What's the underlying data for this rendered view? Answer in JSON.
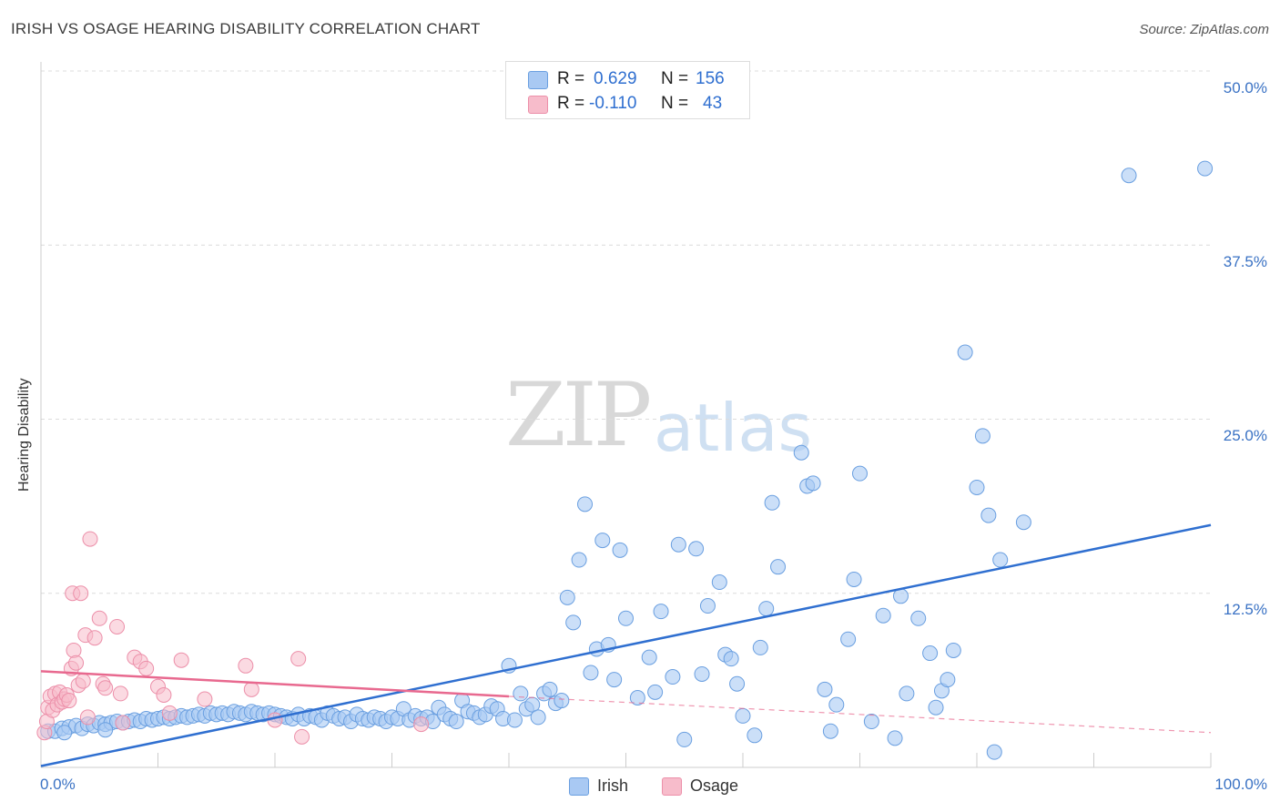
{
  "title": "IRISH VS OSAGE HEARING DISABILITY CORRELATION CHART",
  "source": "Source: ZipAtlas.com",
  "watermark": {
    "zip": "ZIP",
    "atlas": "atlas"
  },
  "legend": {
    "rows": [
      {
        "r_label": "R =",
        "r_value": "0.629",
        "n_label": "N =",
        "n_value": "156"
      },
      {
        "r_label": "R =",
        "r_value": "-0.110",
        "n_label": "N =",
        "n_value": "43"
      }
    ]
  },
  "bottom_legend": {
    "irish": "Irish",
    "osage": "Osage"
  },
  "colors": {
    "irish_fill": "#a9c9f3",
    "irish_stroke": "#6a9fe0",
    "irish_line": "#2f6fd0",
    "osage_fill": "#f7bccb",
    "osage_stroke": "#ec8fa9",
    "osage_line": "#e8698f"
  },
  "chart_data": {
    "type": "scatter",
    "title": "IRISH VS OSAGE HEARING DISABILITY CORRELATION CHART",
    "xlabel": "",
    "ylabel": "Hearing Disability",
    "xlim": [
      0,
      100
    ],
    "ylim": [
      0,
      50
    ],
    "x_tick_labels": [
      "0.0%",
      "100.0%"
    ],
    "y_ticks": [
      12.5,
      25.0,
      37.5,
      50.0
    ],
    "y_tick_labels": [
      "12.5%",
      "25.0%",
      "37.5%",
      "50.0%"
    ],
    "grid": true,
    "legend_position": "top-center",
    "series": [
      {
        "name": "Irish",
        "points": [
          [
            0.6,
            2.6
          ],
          [
            1.2,
            2.6
          ],
          [
            1.8,
            2.8
          ],
          [
            2.4,
            2.9
          ],
          [
            3,
            3.0
          ],
          [
            3.5,
            2.8
          ],
          [
            4,
            3.1
          ],
          [
            4.5,
            3.0
          ],
          [
            5,
            3.2
          ],
          [
            5.5,
            3.1
          ],
          [
            6,
            3.2
          ],
          [
            6.5,
            3.3
          ],
          [
            7,
            3.2
          ],
          [
            7.5,
            3.3
          ],
          [
            8,
            3.4
          ],
          [
            8.5,
            3.3
          ],
          [
            9,
            3.5
          ],
          [
            9.5,
            3.4
          ],
          [
            10,
            3.5
          ],
          [
            10.5,
            3.6
          ],
          [
            11,
            3.5
          ],
          [
            11.5,
            3.6
          ],
          [
            12,
            3.7
          ],
          [
            12.5,
            3.6
          ],
          [
            13,
            3.7
          ],
          [
            13.5,
            3.8
          ],
          [
            14,
            3.7
          ],
          [
            14.5,
            3.9
          ],
          [
            15,
            3.8
          ],
          [
            15.5,
            3.9
          ],
          [
            16,
            3.8
          ],
          [
            16.5,
            4.0
          ],
          [
            17,
            3.9
          ],
          [
            17.5,
            3.8
          ],
          [
            18,
            4.0
          ],
          [
            18.5,
            3.9
          ],
          [
            19,
            3.8
          ],
          [
            19.5,
            3.9
          ],
          [
            20,
            3.8
          ],
          [
            20.5,
            3.7
          ],
          [
            21,
            3.6
          ],
          [
            21.5,
            3.5
          ],
          [
            22,
            3.8
          ],
          [
            22.5,
            3.5
          ],
          [
            23,
            3.7
          ],
          [
            23.5,
            3.6
          ],
          [
            24,
            3.4
          ],
          [
            24.5,
            3.9
          ],
          [
            25,
            3.7
          ],
          [
            25.5,
            3.5
          ],
          [
            26,
            3.6
          ],
          [
            26.5,
            3.3
          ],
          [
            27,
            3.8
          ],
          [
            27.5,
            3.5
          ],
          [
            28,
            3.4
          ],
          [
            28.5,
            3.6
          ],
          [
            29,
            3.5
          ],
          [
            29.5,
            3.3
          ],
          [
            30,
            3.6
          ],
          [
            30.5,
            3.5
          ],
          [
            31,
            4.2
          ],
          [
            31.5,
            3.4
          ],
          [
            32,
            3.7
          ],
          [
            32.5,
            3.5
          ],
          [
            33,
            3.6
          ],
          [
            33.5,
            3.3
          ],
          [
            34,
            4.3
          ],
          [
            34.5,
            3.8
          ],
          [
            35,
            3.5
          ],
          [
            35.5,
            3.3
          ],
          [
            36,
            4.8
          ],
          [
            36.5,
            4.0
          ],
          [
            37,
            3.9
          ],
          [
            37.5,
            3.6
          ],
          [
            38,
            3.8
          ],
          [
            38.5,
            4.4
          ],
          [
            39,
            4.2
          ],
          [
            39.5,
            3.5
          ],
          [
            40,
            7.3
          ],
          [
            40.5,
            3.4
          ],
          [
            41,
            5.3
          ],
          [
            41.5,
            4.2
          ],
          [
            42,
            4.5
          ],
          [
            42.5,
            3.6
          ],
          [
            43,
            5.3
          ],
          [
            43.5,
            5.6
          ],
          [
            44,
            4.6
          ],
          [
            44.5,
            4.8
          ],
          [
            45,
            12.2
          ],
          [
            45.5,
            10.4
          ],
          [
            46,
            14.9
          ],
          [
            46.5,
            18.9
          ],
          [
            47,
            6.8
          ],
          [
            47.5,
            8.5
          ],
          [
            48,
            16.3
          ],
          [
            48.5,
            8.8
          ],
          [
            49,
            6.3
          ],
          [
            49.5,
            15.6
          ],
          [
            50,
            10.7
          ],
          [
            51,
            5.0
          ],
          [
            52,
            7.9
          ],
          [
            52.5,
            5.4
          ],
          [
            53,
            11.2
          ],
          [
            54,
            6.5
          ],
          [
            54.5,
            16.0
          ],
          [
            55,
            2.0
          ],
          [
            56,
            15.7
          ],
          [
            56.5,
            6.7
          ],
          [
            57,
            11.6
          ],
          [
            58,
            13.3
          ],
          [
            58.5,
            8.1
          ],
          [
            59,
            7.8
          ],
          [
            59.5,
            6.0
          ],
          [
            60,
            3.7
          ],
          [
            61,
            2.3
          ],
          [
            61.5,
            8.6
          ],
          [
            62,
            11.4
          ],
          [
            62.5,
            19.0
          ],
          [
            63,
            14.4
          ],
          [
            65,
            22.6
          ],
          [
            65.5,
            20.2
          ],
          [
            66,
            20.4
          ],
          [
            67,
            5.6
          ],
          [
            67.5,
            2.6
          ],
          [
            68,
            4.5
          ],
          [
            69,
            9.2
          ],
          [
            69.5,
            13.5
          ],
          [
            70,
            21.1
          ],
          [
            71,
            3.3
          ],
          [
            72,
            10.9
          ],
          [
            73,
            2.1
          ],
          [
            73.5,
            12.3
          ],
          [
            74,
            5.3
          ],
          [
            75,
            10.7
          ],
          [
            76,
            8.2
          ],
          [
            76.5,
            4.3
          ],
          [
            77,
            5.5
          ],
          [
            77.5,
            6.3
          ],
          [
            78,
            8.4
          ],
          [
            79,
            29.8
          ],
          [
            80,
            20.1
          ],
          [
            80.5,
            23.8
          ],
          [
            81,
            18.1
          ],
          [
            81.5,
            1.1
          ],
          [
            82,
            14.9
          ],
          [
            84,
            17.6
          ],
          [
            93,
            42.5
          ],
          [
            99.5,
            43.0
          ],
          [
            2,
            2.5
          ],
          [
            5.5,
            2.7
          ]
        ],
        "trend": {
          "x": [
            0,
            100
          ],
          "y": [
            0.1,
            17.4
          ]
        }
      },
      {
        "name": "Osage",
        "points": [
          [
            0.3,
            2.5
          ],
          [
            0.5,
            3.3
          ],
          [
            0.6,
            4.3
          ],
          [
            0.8,
            5.1
          ],
          [
            1.0,
            4.1
          ],
          [
            1.2,
            5.3
          ],
          [
            1.4,
            4.5
          ],
          [
            1.6,
            5.4
          ],
          [
            1.8,
            4.7
          ],
          [
            2.0,
            4.9
          ],
          [
            2.2,
            5.2
          ],
          [
            2.4,
            4.8
          ],
          [
            2.6,
            7.1
          ],
          [
            2.7,
            12.5
          ],
          [
            2.8,
            8.4
          ],
          [
            3.0,
            7.5
          ],
          [
            3.2,
            5.9
          ],
          [
            3.4,
            12.5
          ],
          [
            3.6,
            6.2
          ],
          [
            3.8,
            9.5
          ],
          [
            4.0,
            3.6
          ],
          [
            4.2,
            16.4
          ],
          [
            4.6,
            9.3
          ],
          [
            5.0,
            10.7
          ],
          [
            5.3,
            6.0
          ],
          [
            5.5,
            5.7
          ],
          [
            6.5,
            10.1
          ],
          [
            6.8,
            5.3
          ],
          [
            7.0,
            3.2
          ],
          [
            8.0,
            7.9
          ],
          [
            8.5,
            7.6
          ],
          [
            9.0,
            7.1
          ],
          [
            10.0,
            5.8
          ],
          [
            10.5,
            5.2
          ],
          [
            11.0,
            3.9
          ],
          [
            12.0,
            7.7
          ],
          [
            14.0,
            4.9
          ],
          [
            17.5,
            7.3
          ],
          [
            18.0,
            5.6
          ],
          [
            20.0,
            3.4
          ],
          [
            22.0,
            7.8
          ],
          [
            22.3,
            2.2
          ],
          [
            32.5,
            3.1
          ]
        ],
        "trend": {
          "x": [
            0,
            40
          ],
          "y": [
            6.9,
            5.1
          ]
        },
        "trend_dashed": {
          "x": [
            40,
            100
          ],
          "y": [
            5.1,
            2.5
          ]
        }
      }
    ]
  }
}
